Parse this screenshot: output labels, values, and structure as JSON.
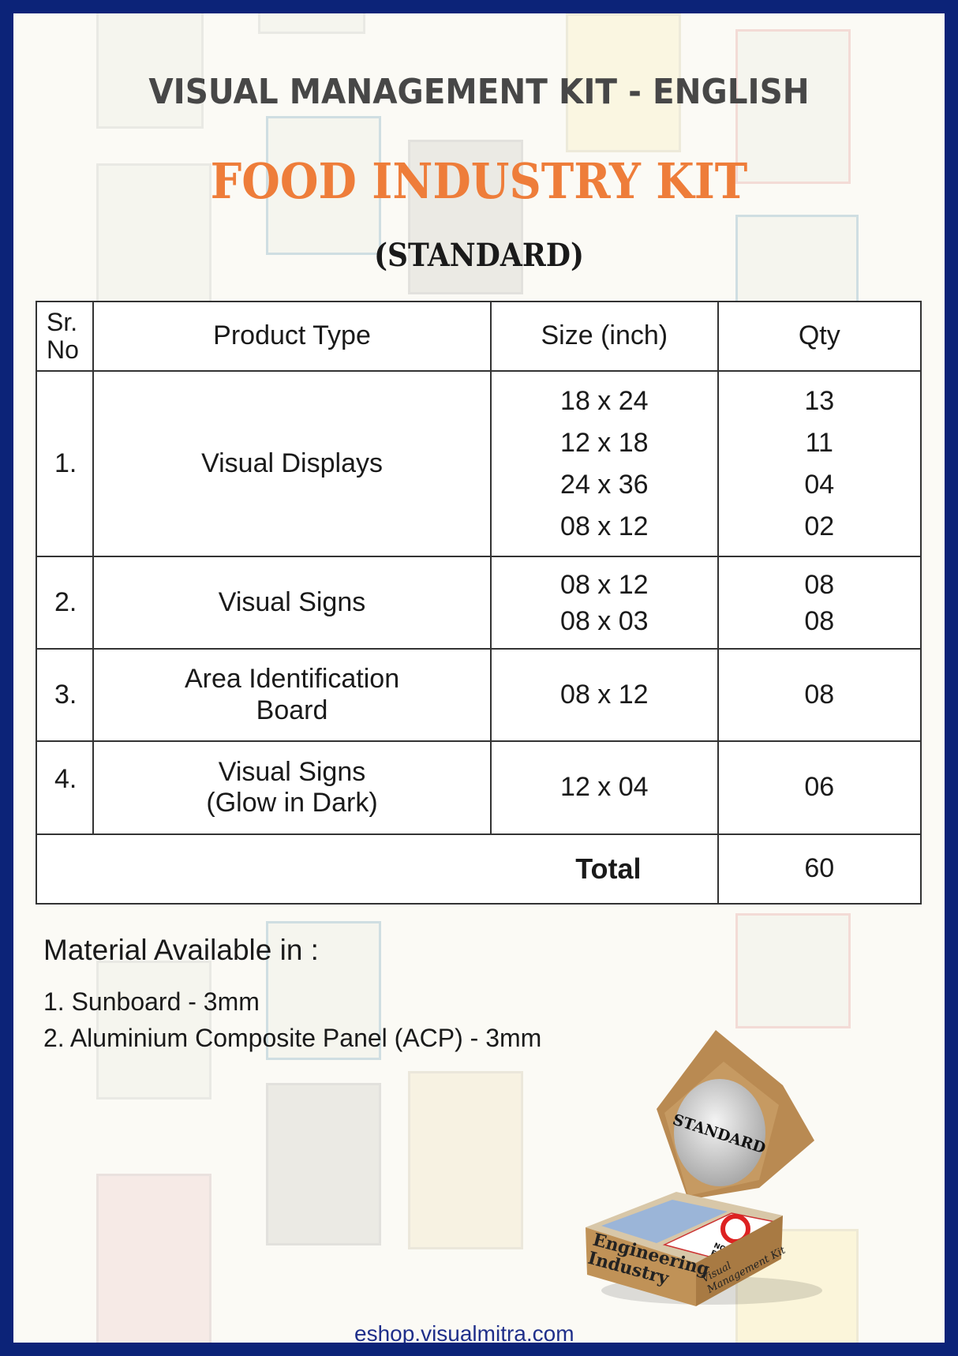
{
  "header": {
    "title": "VISUAL MANAGEMENT KIT - ENGLISH",
    "kit_name": "FOOD INDUSTRY KIT",
    "variant": "(STANDARD)"
  },
  "colors": {
    "border": "#0c2378",
    "accent": "#ee7d3a",
    "link": "#1f2f8a"
  },
  "table": {
    "headers": {
      "sr": [
        "Sr.",
        "No"
      ],
      "product": "Product Type",
      "size": "Size (inch)",
      "qty": "Qty"
    },
    "rows": [
      {
        "sr": "1.",
        "product": [
          "Visual Displays"
        ],
        "sizes": [
          "18 x 24",
          "12 x 18",
          "24 x 36",
          "08 x 12"
        ],
        "qty": [
          "13",
          "11",
          "04",
          "02"
        ]
      },
      {
        "sr": "2.",
        "product": [
          "Visual Signs"
        ],
        "sizes": [
          "08 x 12",
          "08 x 03"
        ],
        "qty": [
          "08",
          "08"
        ]
      },
      {
        "sr": "3.",
        "product": [
          "Area Identification",
          "Board"
        ],
        "sizes": [
          "08 x 12"
        ],
        "qty": [
          "08"
        ]
      },
      {
        "sr": "4.",
        "product": [
          "Visual Signs",
          "(Glow in Dark)"
        ],
        "sizes": [
          "12 x 04"
        ],
        "qty": [
          "06"
        ]
      }
    ],
    "total_label": "Total",
    "total_value": "60"
  },
  "material": {
    "heading": "Material Available in :",
    "items": [
      "1. Sunboard - 3mm",
      "2. Aluminium Composite Panel  (ACP) - 3mm"
    ]
  },
  "box_image": {
    "lid_label": "STANDARD",
    "front_text": [
      "Engineering",
      "Industry"
    ],
    "side_text": [
      "Visual",
      "Management Kit"
    ],
    "sign_text": [
      "NO OPEN",
      "FLAMES"
    ]
  },
  "footer": {
    "url": "eshop.visualmitra.com"
  }
}
